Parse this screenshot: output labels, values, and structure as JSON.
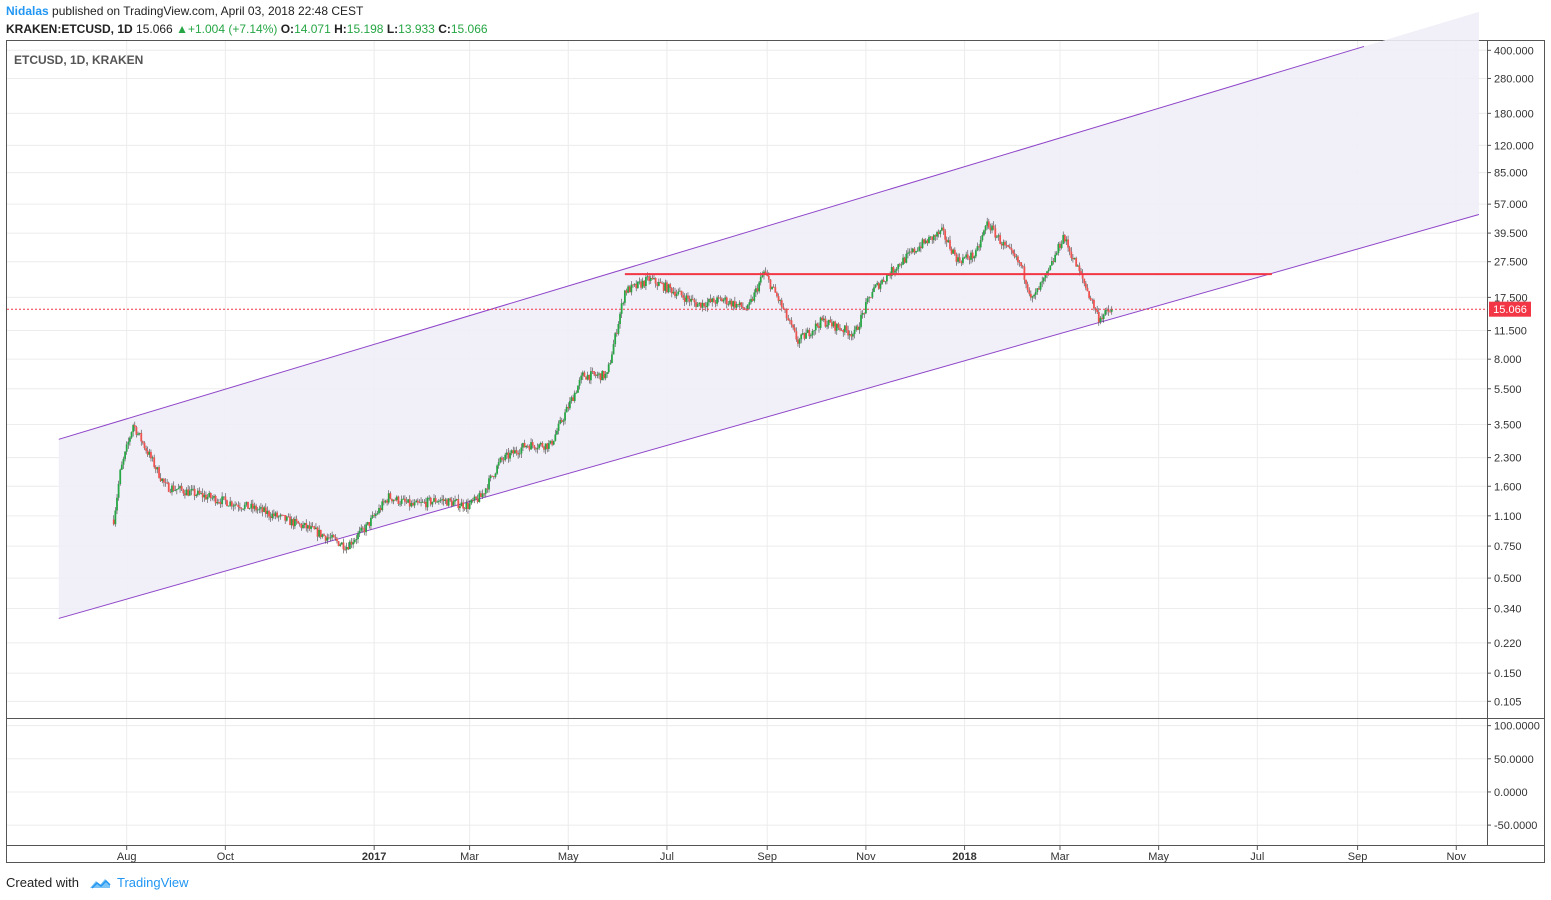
{
  "header": {
    "author": "Nidalas",
    "published": "published on TradingView.com, April 03, 2018 22:48 CEST",
    "symbol": "KRAKEN:ETCUSD, 1D",
    "last": "15.066",
    "change": "+1.004 (+7.14%)",
    "o_label": "O:",
    "o_value": "14.071",
    "h_label": "H:",
    "h_value": "15.198",
    "l_label": "L:",
    "l_value": "13.933",
    "c_label": "C:",
    "c_value": "15.066"
  },
  "chart_title": "ETCUSD, 1D, KRAKEN",
  "last_price_label": "15.066",
  "footer": {
    "created": "Created with",
    "brand": "TradingView"
  },
  "colors": {
    "up": "#26a644",
    "down": "#ef5350",
    "channel": "#8e44c9",
    "channel_fill": "#efedf6",
    "resistance": "#f23645",
    "brand": "#2196f3"
  },
  "chart_data": {
    "type": "candlestick",
    "title": "ETCUSD, 1D, KRAKEN",
    "yscale": "log",
    "ylim": [
      0.085,
      450
    ],
    "y_ticks": [
      "400.000",
      "280.000",
      "180.000",
      "120.000",
      "85.000",
      "57.000",
      "39.500",
      "27.500",
      "17.500",
      "11.500",
      "8.000",
      "5.500",
      "3.500",
      "2.300",
      "1.600",
      "1.100",
      "0.750",
      "0.500",
      "0.340",
      "0.220",
      "0.150",
      "0.105"
    ],
    "x_ticks": [
      "Aug",
      "Oct",
      "2017",
      "Mar",
      "May",
      "Jul",
      "Sep",
      "Nov",
      "2018",
      "Mar",
      "May",
      "Jul",
      "Sep",
      "Nov"
    ],
    "x_ticks_bold": [
      "2017",
      "2018"
    ],
    "x_range": [
      "2016-05-19",
      "2018-11-20"
    ],
    "last_price": 15.066,
    "series": [
      {
        "dates": [
          "2016-07-24",
          "2016-07-28",
          "2016-08-05",
          "2016-08-25",
          "2016-09-20",
          "2016-10-20",
          "2016-11-20",
          "2016-12-15",
          "2016-12-27",
          "2017-01-10",
          "2017-01-25",
          "2017-02-10",
          "2017-02-28",
          "2017-03-08",
          "2017-03-20",
          "2017-04-05",
          "2017-04-20",
          "2017-05-10",
          "2017-05-25",
          "2017-06-05",
          "2017-06-12",
          "2017-06-20",
          "2017-07-05",
          "2017-07-20",
          "2017-08-05",
          "2017-08-20",
          "2017-08-30",
          "2017-09-08",
          "2017-09-20",
          "2017-10-05",
          "2017-10-25",
          "2017-11-05",
          "2017-11-20",
          "2017-12-05",
          "2017-12-18",
          "2017-12-28",
          "2018-01-08",
          "2018-01-15",
          "2018-01-25",
          "2018-02-05",
          "2018-02-12",
          "2018-02-22",
          "2018-03-03",
          "2018-03-15",
          "2018-03-25",
          "2018-04-03"
        ],
        "close": [
          1.05,
          1.9,
          3.5,
          1.6,
          1.4,
          1.2,
          0.95,
          0.75,
          0.95,
          1.4,
          1.25,
          1.35,
          1.25,
          1.4,
          2.2,
          2.7,
          2.7,
          6.5,
          6.5,
          19,
          20,
          22,
          19,
          16,
          17,
          15,
          24,
          17,
          10,
          13,
          11,
          19,
          26,
          34,
          40,
          28,
          30,
          45,
          34,
          26,
          17,
          24,
          38,
          22,
          13.5,
          15.066
        ]
      }
    ],
    "channel": {
      "upper": [
        {
          "date": "2016-06-20",
          "value": 2.9
        },
        {
          "date": "2018-09-05",
          "value": 420
        }
      ],
      "lower": [
        {
          "date": "2016-06-20",
          "value": 0.3
        },
        {
          "date": "2018-11-15",
          "value": 50
        }
      ]
    },
    "resistance": {
      "from": "2017-06-05",
      "to": "2018-07-10",
      "value": 23.5
    },
    "indicator_pane": {
      "y_ticks": [
        "100.0000",
        "50.0000",
        "0.0000",
        "-50.0000"
      ],
      "ylim": [
        -80,
        110
      ]
    }
  }
}
